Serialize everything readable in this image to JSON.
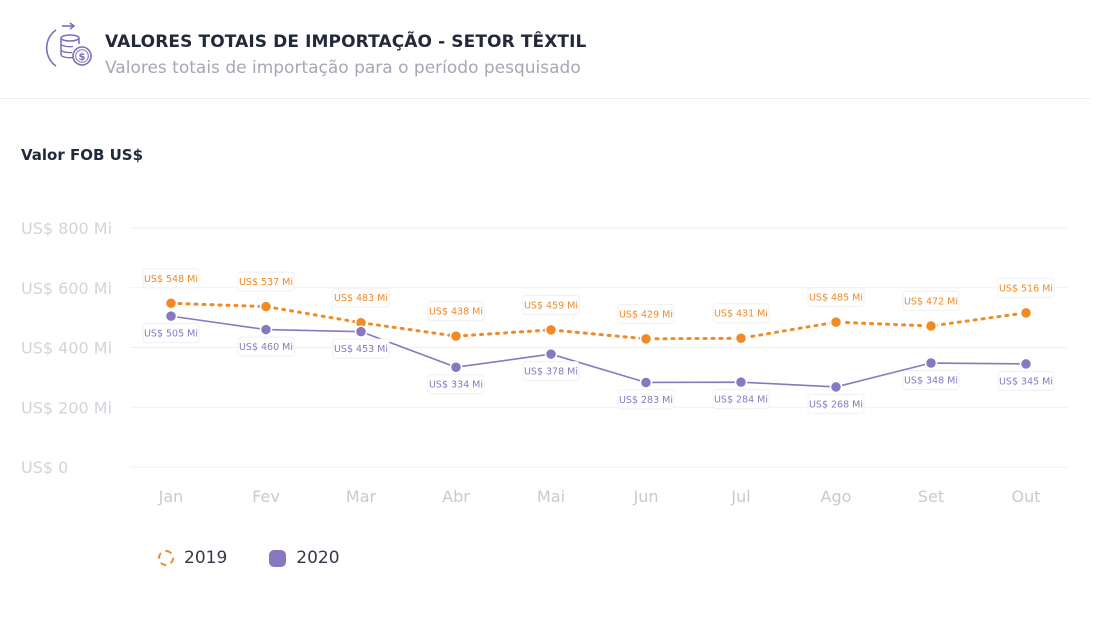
{
  "header": {
    "icon": "coins-dollar-icon",
    "title": "VALORES TOTAIS DE IMPORTAÇÃO - SETOR TÊXTIL",
    "subtitle": "Valores totais de importação para o período pesquisado"
  },
  "chart_data": {
    "type": "line",
    "ylabel": "Valor FOB US$",
    "categories": [
      "Jan",
      "Fev",
      "Mar",
      "Abr",
      "Mai",
      "Jun",
      "Jul",
      "Ago",
      "Set",
      "Out"
    ],
    "ylim": [
      0,
      800
    ],
    "yticks": [
      0,
      200,
      400,
      600,
      800
    ],
    "ytick_labels": [
      "US$ 0",
      "US$ 200 Mi",
      "US$ 400 Mi",
      "US$ 600 Mi",
      "US$ 800 Mi"
    ],
    "grid": true,
    "legend_position": "bottom-left",
    "series": [
      {
        "name": "2019",
        "color": "#f08a24",
        "style": "dotted",
        "values": [
          548,
          537,
          483,
          438,
          459,
          429,
          431,
          485,
          472,
          516
        ],
        "data_labels": [
          "US$ 548 Mi",
          "US$ 537 Mi",
          "US$ 483 Mi",
          "US$ 438 Mi",
          "US$ 459 Mi",
          "US$ 429 Mi",
          "US$ 431 Mi",
          "US$ 485 Mi",
          "US$ 472 Mi",
          "US$ 516 Mi"
        ]
      },
      {
        "name": "2020",
        "color": "#8878c0",
        "style": "solid",
        "values": [
          505,
          460,
          453,
          334,
          378,
          283,
          284,
          268,
          348,
          345
        ],
        "data_labels": [
          "US$ 505 Mi",
          "US$ 460 Mi",
          "US$ 453 Mi",
          "US$ 334 Mi",
          "US$ 378 Mi",
          "US$ 283 Mi",
          "US$ 284 Mi",
          "US$ 268 Mi",
          "US$ 348 Mi",
          "US$ 345 Mi"
        ]
      }
    ]
  }
}
